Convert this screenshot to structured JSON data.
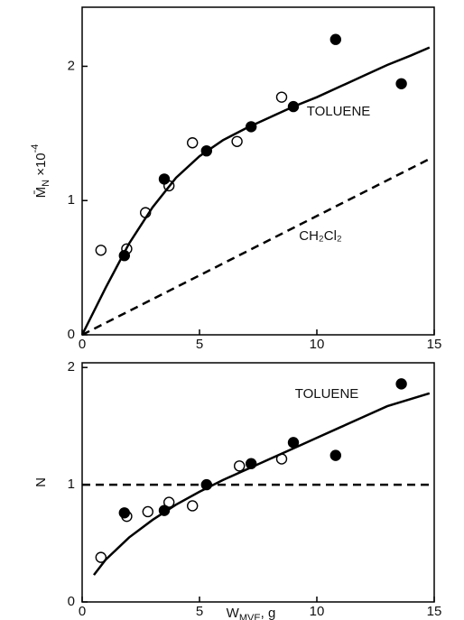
{
  "chart_data": [
    {
      "type": "scatter",
      "ylabel": [
        "M̄",
        "N",
        " ×10",
        "-4"
      ],
      "annotations": [
        "TOLUENE",
        "CH₂Cl₂"
      ],
      "xlim": [
        0,
        15
      ],
      "xticks": [
        0,
        5,
        10,
        15
      ],
      "ylim": [
        0,
        2.44
      ],
      "yticks": [
        0,
        1,
        2
      ],
      "series": [
        {
          "mode": "open",
          "color": "#000",
          "x": [
            0.8,
            1.9,
            2.7,
            3.7,
            4.7,
            6.6,
            8.5
          ],
          "values": [
            0.63,
            0.64,
            0.91,
            1.11,
            1.43,
            1.44,
            1.77
          ]
        },
        {
          "mode": "filled",
          "color": "#000",
          "x": [
            1.8,
            3.5,
            5.3,
            7.2,
            9.0,
            10.8,
            13.6
          ],
          "values": [
            0.59,
            1.16,
            1.37,
            1.55,
            1.7,
            2.2,
            1.87
          ]
        },
        {
          "mode": "solid",
          "color": "#000",
          "x": [
            0,
            1,
            2,
            3,
            4,
            5,
            6,
            7,
            8,
            9,
            10,
            11,
            12,
            13,
            14,
            14.8
          ],
          "values": [
            0,
            0.35,
            0.68,
            0.95,
            1.17,
            1.33,
            1.45,
            1.54,
            1.62,
            1.7,
            1.77,
            1.85,
            1.93,
            2.01,
            2.08,
            2.14
          ]
        },
        {
          "mode": "dashed",
          "color": "#000",
          "x": [
            0,
            14.8
          ],
          "values": [
            0,
            1.31
          ]
        }
      ]
    },
    {
      "type": "scatter",
      "ylabel": [
        "N"
      ],
      "xlabel": [
        "W",
        "MVE",
        ", g"
      ],
      "annotations": [
        "TOLUENE"
      ],
      "xlim": [
        0,
        15
      ],
      "xticks": [
        0,
        5,
        10,
        15
      ],
      "ylim": [
        0,
        2.04
      ],
      "yticks": [
        0,
        1,
        2
      ],
      "series": [
        {
          "mode": "open",
          "color": "#000",
          "x": [
            0.8,
            1.9,
            2.8,
            3.7,
            4.7,
            6.7,
            8.5
          ],
          "values": [
            0.38,
            0.73,
            0.77,
            0.85,
            0.82,
            1.16,
            1.22
          ]
        },
        {
          "mode": "filled",
          "color": "#000",
          "x": [
            1.8,
            3.5,
            5.3,
            7.2,
            9.0,
            10.8,
            13.6
          ],
          "values": [
            0.76,
            0.78,
            1.0,
            1.18,
            1.36,
            1.25,
            1.86
          ]
        },
        {
          "mode": "solid",
          "color": "#000",
          "x": [
            0.5,
            1,
            2,
            3,
            4,
            5,
            6,
            7,
            8,
            9,
            10,
            11,
            12,
            13,
            14.8
          ],
          "values": [
            0.23,
            0.36,
            0.55,
            0.7,
            0.83,
            0.94,
            1.04,
            1.13,
            1.22,
            1.31,
            1.4,
            1.49,
            1.58,
            1.67,
            1.78
          ]
        },
        {
          "mode": "dashed",
          "color": "#000",
          "x": [
            0,
            15
          ],
          "values": [
            1,
            1
          ]
        }
      ]
    }
  ]
}
